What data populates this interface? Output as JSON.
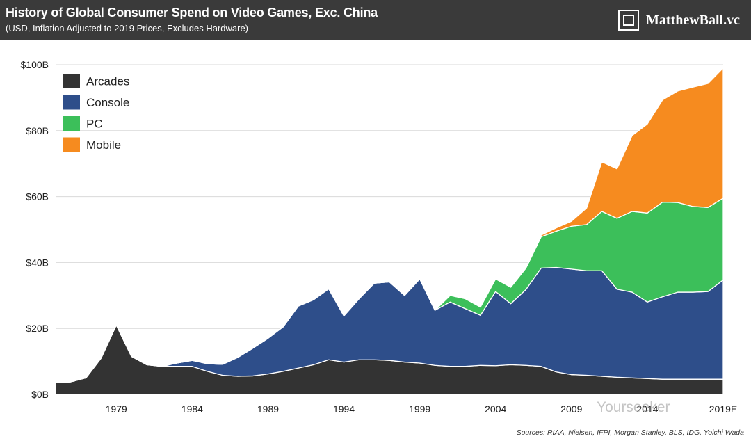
{
  "header": {
    "title": "History of Global Consumer Spend on Video Games, Exc. China",
    "subtitle": "(USD, Inflation Adjusted to 2019 Prices, Excludes Hardware)",
    "brand": "MatthewBall.vc"
  },
  "sources": "Sources: RIAA, Nielsen, IFPI, Morgan Stanley, BLS, IDG, Yoichi Wada",
  "watermark": "Yourseeker",
  "chart_data": {
    "type": "area",
    "stacked": true,
    "title": "History of Global Consumer Spend on Video Games, Exc. China",
    "xlabel": "",
    "ylabel": "",
    "x": [
      1975,
      1976,
      1977,
      1978,
      1979,
      1980,
      1981,
      1982,
      1983,
      1984,
      1985,
      1986,
      1987,
      1988,
      1989,
      1990,
      1991,
      1992,
      1993,
      1994,
      1995,
      1996,
      1997,
      1998,
      1999,
      2000,
      2001,
      2002,
      2003,
      2004,
      2005,
      2006,
      2007,
      2008,
      2009,
      2010,
      2011,
      2012,
      2013,
      2014,
      2015,
      2016,
      2017,
      2018,
      2019
    ],
    "x_tick_values": [
      1979,
      1984,
      1989,
      1994,
      1999,
      2004,
      2009,
      2014,
      2019
    ],
    "x_tick_labels": [
      "1979",
      "1984",
      "1989",
      "1994",
      "1999",
      "2004",
      "2009",
      "2014",
      "2019E"
    ],
    "y_ticks": [
      0,
      20,
      40,
      60,
      80,
      100
    ],
    "y_tick_labels": [
      "$0B",
      "$20B",
      "$40B",
      "$60B",
      "$80B",
      "$100B"
    ],
    "ylim": [
      0,
      100
    ],
    "legend_position": "top-left",
    "series": [
      {
        "name": "Arcades",
        "color": "#333333",
        "values": [
          3.5,
          3.8,
          5,
          11,
          21,
          11.5,
          9,
          8.5,
          8.5,
          8.5,
          7,
          5.8,
          5.5,
          5.6,
          6.2,
          7,
          8,
          9,
          10.5,
          9.8,
          10.5,
          10.5,
          10.3,
          9.8,
          9.5,
          8.8,
          8.5,
          8.5,
          8.8,
          8.7,
          9,
          8.8,
          8.5,
          6.8,
          6,
          5.8,
          5.5,
          5.2,
          5,
          4.8,
          4.6,
          4.6,
          4.6,
          4.6,
          4.6
        ]
      },
      {
        "name": "Console",
        "color": "#2e4e8a",
        "values": [
          0,
          0,
          0,
          0,
          0,
          0,
          0,
          0,
          1,
          1.8,
          2.3,
          3.3,
          5.7,
          8.4,
          10.8,
          13.5,
          18.8,
          19.7,
          21.5,
          14,
          18.5,
          23.2,
          23.8,
          20.2,
          25.5,
          16.7,
          19.5,
          17.5,
          15.2,
          22.5,
          18.5,
          23,
          29.8,
          31.7,
          32,
          31.7,
          32,
          26.7,
          26,
          23.2,
          25,
          26.4,
          26.4,
          26.6,
          30.1
        ]
      },
      {
        "name": "PC",
        "color": "#3cbf5a",
        "values": [
          0,
          0,
          0,
          0,
          0,
          0,
          0,
          0,
          0,
          0,
          0,
          0,
          0,
          0,
          0,
          0,
          0,
          0,
          0,
          0,
          0,
          0,
          0,
          0,
          0,
          0,
          2,
          3,
          2.5,
          3.8,
          5,
          6.5,
          9.5,
          11,
          13,
          14,
          18,
          21.5,
          24.5,
          27,
          28.7,
          27.2,
          26,
          25.5,
          24.8
        ]
      },
      {
        "name": "Mobile",
        "color": "#f68b1f",
        "values": [
          0,
          0,
          0,
          0,
          0,
          0,
          0,
          0,
          0,
          0,
          0,
          0,
          0,
          0,
          0,
          0,
          0,
          0,
          0,
          0,
          0,
          0,
          0,
          0,
          0,
          0,
          0,
          0,
          0,
          0,
          0,
          0.2,
          0.5,
          1,
          1.5,
          5,
          15,
          15,
          23,
          27,
          31,
          33.8,
          36.2,
          37.6,
          39.5
        ]
      }
    ]
  }
}
